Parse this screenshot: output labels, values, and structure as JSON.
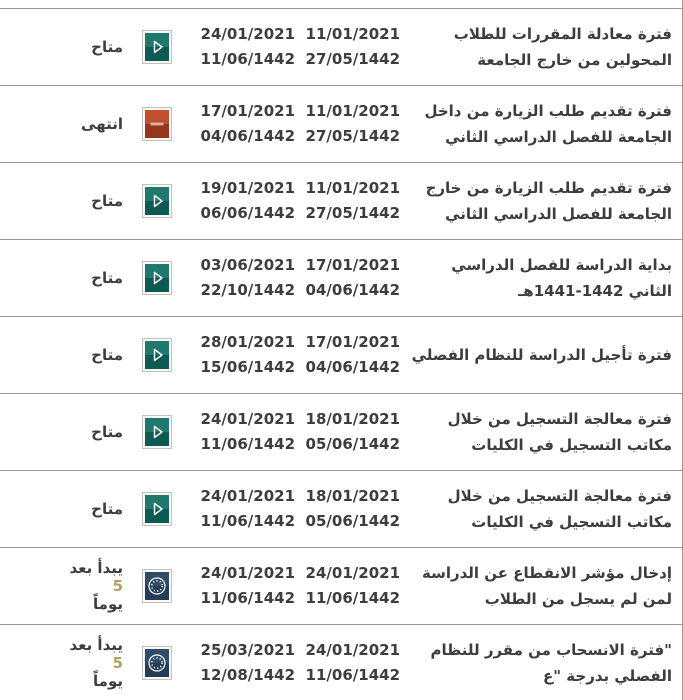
{
  "colors": {
    "available_teal_top": "#20796f",
    "available_teal_bottom": "#0d5a52",
    "ended_red_top": "#c0512f",
    "ended_red_bottom": "#97361f",
    "upcoming_navy_top": "#2f4d6b",
    "upcoming_navy_bottom": "#243e59",
    "days_highlight_gold": "#b3a163",
    "divider_gray": "#9e988b",
    "text_dark": "#3e3d3b"
  },
  "table": {
    "rows": [
      {
        "title": "فترة معادلة المقررات للطلاب المحولين من خارج الجامعة",
        "start_g": "11/01/2021",
        "start_h": "27/05/1442",
        "end_g": "24/01/2021",
        "end_h": "11/06/1442",
        "icon": "play",
        "status": "متاح",
        "status_parts": [
          {
            "text": "متاح",
            "gold": false
          }
        ]
      },
      {
        "title": "فترة تقديم طلب الزيارة من داخل الجامعة للفصل الدراسي الثاني",
        "start_g": "11/01/2021",
        "start_h": "27/05/1442",
        "end_g": "17/01/2021",
        "end_h": "04/06/1442",
        "icon": "minus",
        "status": "انتهى",
        "status_parts": [
          {
            "text": "انتهى",
            "gold": false
          }
        ]
      },
      {
        "title": "فترة تقديم طلب الزيارة من خارج الجامعة للفصل الدراسي الثاني",
        "start_g": "11/01/2021",
        "start_h": "27/05/1442",
        "end_g": "19/01/2021",
        "end_h": "06/06/1442",
        "icon": "play",
        "status": "متاح",
        "status_parts": [
          {
            "text": "متاح",
            "gold": false
          }
        ]
      },
      {
        "title": "بداية الدراسة للفصل الدراسي الثاني 1442-1441هـ",
        "start_g": "17/01/2021",
        "start_h": "04/06/1442",
        "end_g": "03/06/2021",
        "end_h": "22/10/1442",
        "icon": "play",
        "status": "متاح",
        "status_parts": [
          {
            "text": "متاح",
            "gold": false
          }
        ]
      },
      {
        "title": "فترة تأجيل الدراسة للنظام الفصلي",
        "start_g": "17/01/2021",
        "start_h": "04/06/1442",
        "end_g": "28/01/2021",
        "end_h": "15/06/1442",
        "icon": "play",
        "status": "متاح",
        "status_parts": [
          {
            "text": "متاح",
            "gold": false
          }
        ]
      },
      {
        "title": "فترة معالجة التسجيل من خلال مكاتب التسجيل في الكليات",
        "start_g": "18/01/2021",
        "start_h": "05/06/1442",
        "end_g": "24/01/2021",
        "end_h": "11/06/1442",
        "icon": "play",
        "status": "متاح",
        "status_parts": [
          {
            "text": "متاح",
            "gold": false
          }
        ]
      },
      {
        "title": "فترة معالجة التسجيل من خلال مكاتب التسجيل في الكليات",
        "start_g": "18/01/2021",
        "start_h": "05/06/1442",
        "end_g": "24/01/2021",
        "end_h": "11/06/1442",
        "icon": "play",
        "status": "متاح",
        "status_parts": [
          {
            "text": "متاح",
            "gold": false
          }
        ]
      },
      {
        "title": "إدخال مؤشر الانقطاع عن الدراسة لمن لم يسجل من الطلاب",
        "start_g": "24/01/2021",
        "start_h": "11/06/1442",
        "end_g": "24/01/2021",
        "end_h": "11/06/1442",
        "icon": "clock",
        "status": "يبدأ بعد 5 يوماً",
        "status_parts": [
          {
            "text": "يبدأ بعد ",
            "gold": false
          },
          {
            "text": "5",
            "gold": true
          },
          {
            "text": " يوماً",
            "gold": false
          }
        ]
      },
      {
        "title": "\"فترة الانسحاب من مقرر للنظام الفصلي بدرجة \"ع",
        "start_g": "24/01/2021",
        "start_h": "11/06/1442",
        "end_g": "25/03/2021",
        "end_h": "12/08/1442",
        "icon": "clock",
        "status": "يبدأ بعد 5 يوماً",
        "status_parts": [
          {
            "text": "يبدأ بعد ",
            "gold": false
          },
          {
            "text": "5",
            "gold": true
          },
          {
            "text": " يوماً",
            "gold": false
          }
        ]
      }
    ]
  }
}
